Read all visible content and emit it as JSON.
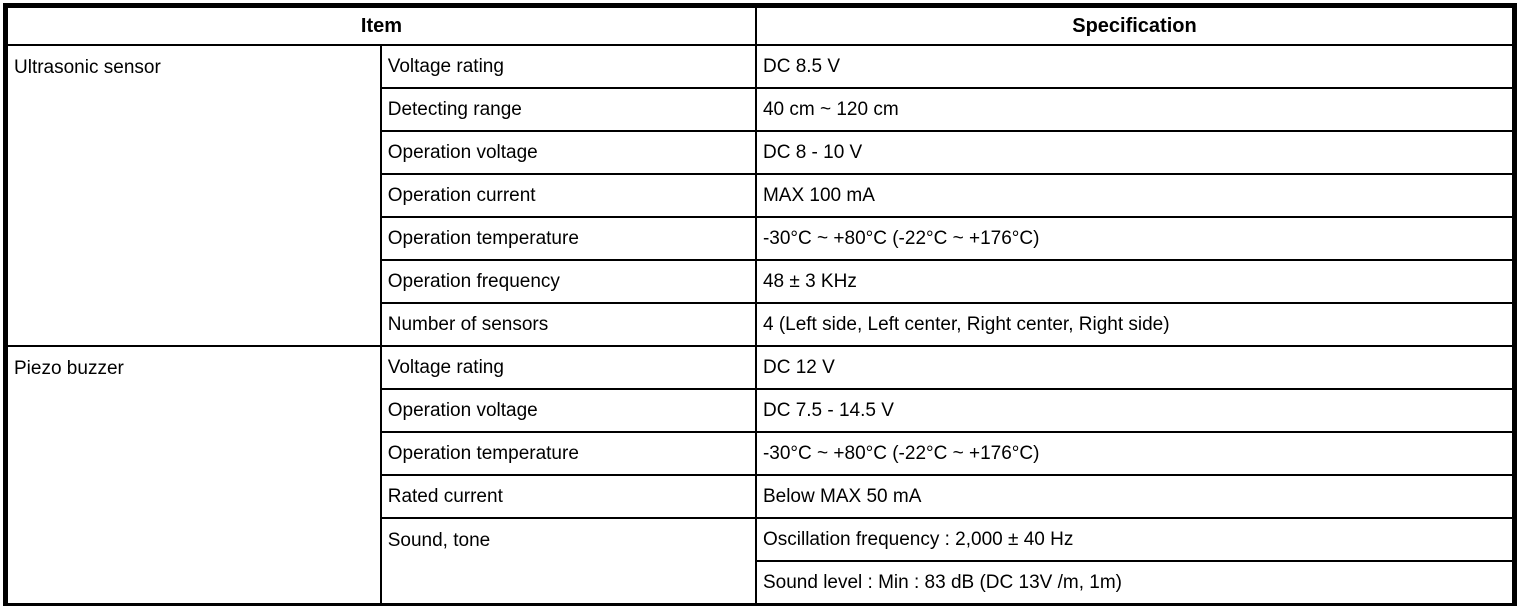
{
  "table": {
    "headers": {
      "item": "Item",
      "specification": "Specification"
    },
    "groups": [
      {
        "name": "Ultrasonic sensor",
        "rows": [
          {
            "item": "Voltage rating",
            "spec": "DC 8.5 V"
          },
          {
            "item": "Detecting range",
            "spec": "40 cm ~ 120 cm"
          },
          {
            "item": "Operation voltage",
            "spec": "DC 8 - 10 V"
          },
          {
            "item": "Operation current",
            "spec": "MAX 100 mA"
          },
          {
            "item": "Operation temperature",
            "spec": "-30°C ~ +80°C (-22°C ~ +176°C)"
          },
          {
            "item": "Operation frequency",
            "spec": "48 ± 3 KHz"
          },
          {
            "item": "Number of sensors",
            "spec": "4 (Left side, Left center, Right center, Right side)"
          }
        ]
      },
      {
        "name": "Piezo buzzer",
        "rows": [
          {
            "item": "Voltage rating",
            "spec": "DC 12 V"
          },
          {
            "item": "Operation voltage",
            "spec": "DC 7.5 - 14.5 V"
          },
          {
            "item": "Operation temperature",
            "spec": "-30°C ~ +80°C (-22°C ~ +176°C)"
          },
          {
            "item": "Rated current",
            "spec": "Below MAX 50 mA"
          },
          {
            "item": "Sound, tone",
            "specs": [
              "Oscillation frequency : 2,000 ± 40 Hz",
              "Sound level : Min : 83 dB (DC 13V /m, 1m)"
            ]
          }
        ]
      }
    ]
  }
}
